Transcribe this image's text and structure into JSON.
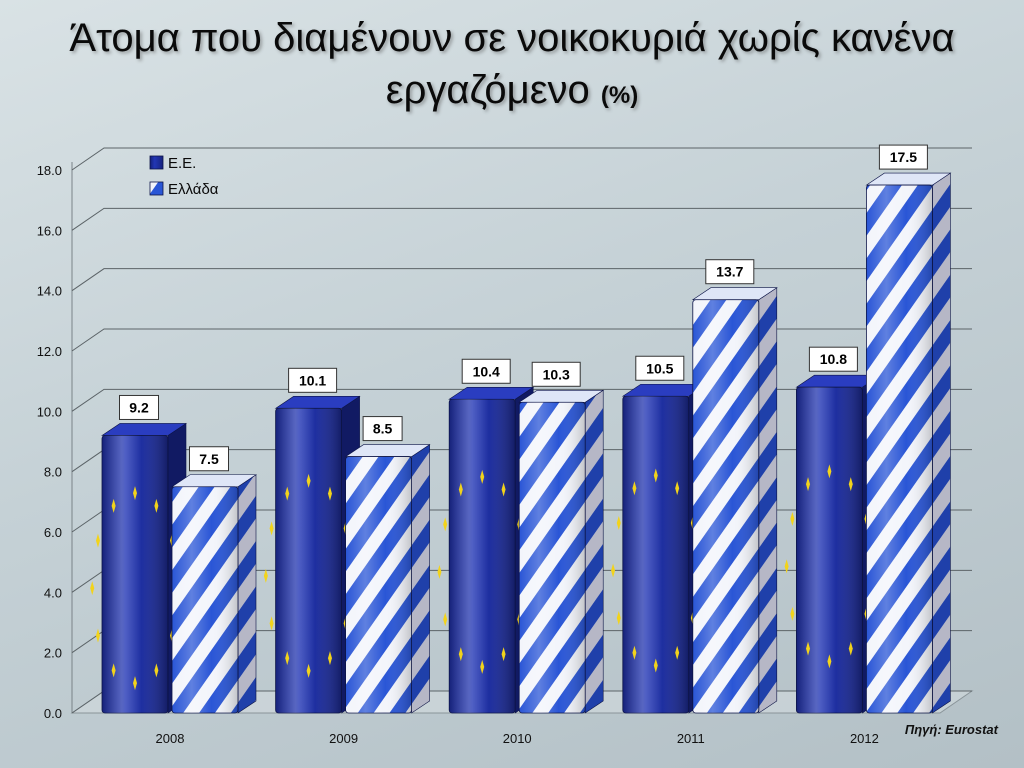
{
  "title": {
    "line1": "Άτομα που διαμένουν σε νοικοκυριά χωρίς κανένα",
    "line2": "εργαζόμενο",
    "unit": "(%)"
  },
  "source": "Πηγή: Eurostat",
  "colors": {
    "eu_blue": "#1e2fa8",
    "eu_star": "#f2d31b",
    "greece_blue": "#2a56d6",
    "greece_white": "#f3f5fb"
  },
  "chart_data": {
    "type": "bar",
    "categories": [
      "2008",
      "2009",
      "2010",
      "2011",
      "2012"
    ],
    "series": [
      {
        "name": "Ε.Ε.",
        "values": [
          9.2,
          10.1,
          10.4,
          10.5,
          10.8
        ],
        "labels": [
          "9.2",
          "10.1",
          "10.4",
          "10.5",
          "10.8"
        ]
      },
      {
        "name": "Ελλάδα",
        "values": [
          7.5,
          8.5,
          10.3,
          13.7,
          17.5
        ],
        "labels": [
          "7.5",
          "8.5",
          "10.3",
          "13.7",
          "17.5"
        ]
      }
    ],
    "ylim": [
      0,
      18
    ],
    "yticks": [
      "0.0",
      "2.0",
      "4.0",
      "6.0",
      "8.0",
      "10.0",
      "12.0",
      "14.0",
      "16.0",
      "18.0"
    ],
    "grid": true,
    "legend_position": "top-left"
  }
}
